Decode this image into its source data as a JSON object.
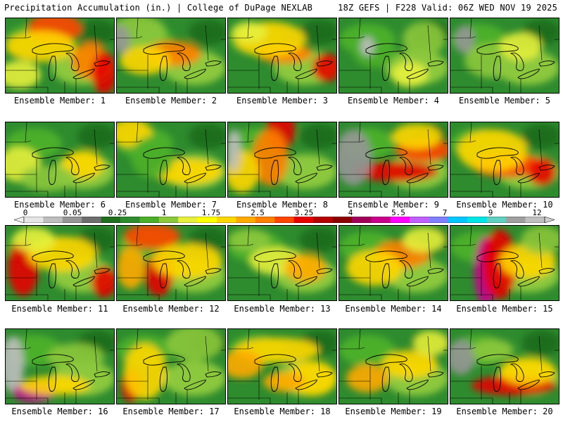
{
  "header": {
    "left": "Precipitation Accumulation (in.) | College of DuPage NEXLAB",
    "right": "18Z GEFS | F228 Valid: 06Z WED NOV 19 2025"
  },
  "legend": {
    "ticks": [
      "0",
      "0.05",
      "0.25",
      "1",
      "1.75",
      "2.5",
      "3.25",
      "4",
      "5.5",
      "7",
      "9",
      "12"
    ],
    "colors": [
      "#e6e6e6",
      "#bebebe",
      "#969696",
      "#6e6e6e",
      "#1e6e1e",
      "#2e8b2e",
      "#4caf2a",
      "#8cc83c",
      "#e6f03c",
      "#ffff00",
      "#ffd700",
      "#ffaa00",
      "#ff7f00",
      "#ff4500",
      "#e60000",
      "#b40000",
      "#8b0000",
      "#a0005a",
      "#c8008c",
      "#ff00ff",
      "#c060ff",
      "#8080ff",
      "#00c8ff",
      "#00e6e6",
      "#60d0c0",
      "#a0a0a0",
      "#c0c0c0"
    ]
  },
  "panels": [
    {
      "label": "Ensemble Member: 1"
    },
    {
      "label": "Ensemble Member: 2"
    },
    {
      "label": "Ensemble Member: 3"
    },
    {
      "label": "Ensemble Member: 4"
    },
    {
      "label": "Ensemble Member: 5"
    },
    {
      "label": "Ensemble Member: 6"
    },
    {
      "label": "Ensemble Member: 7"
    },
    {
      "label": "Ensemble Member: 8"
    },
    {
      "label": "Ensemble Member: 9"
    },
    {
      "label": "Ensemble Member: 10"
    },
    {
      "label": "Ensemble Member: 11"
    },
    {
      "label": "Ensemble Member: 12"
    },
    {
      "label": "Ensemble Member: 13"
    },
    {
      "label": "Ensemble Member: 14"
    },
    {
      "label": "Ensemble Member: 15"
    },
    {
      "label": "Ensemble Member: 16"
    },
    {
      "label": "Ensemble Member: 17"
    },
    {
      "label": "Ensemble Member: 18"
    },
    {
      "label": "Ensemble Member: 19"
    },
    {
      "label": "Ensemble Member: 20"
    }
  ]
}
